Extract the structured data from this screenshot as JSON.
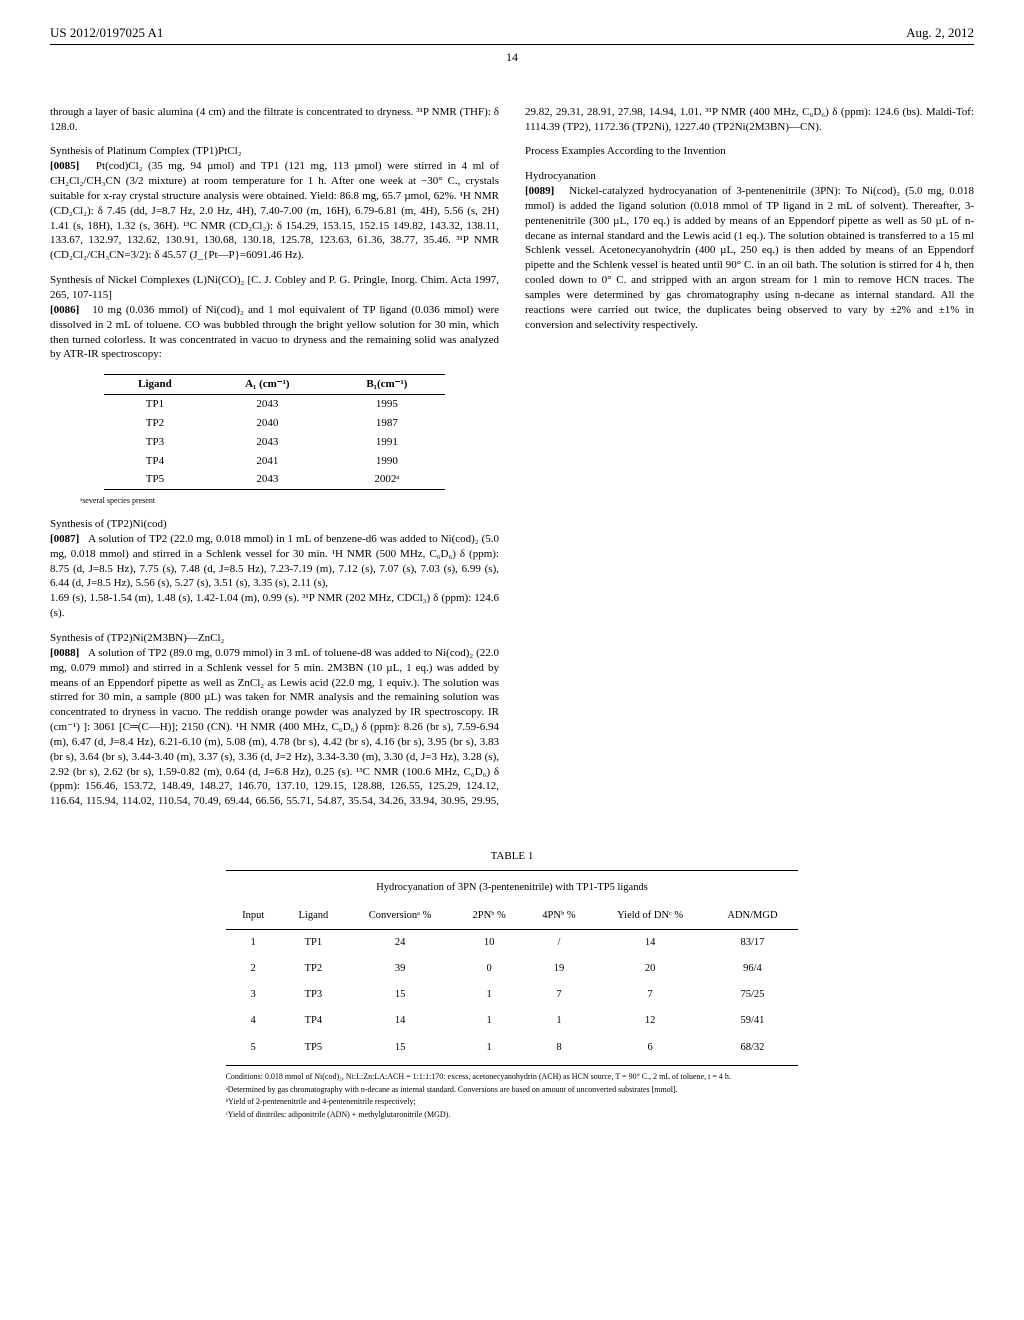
{
  "header": {
    "patent_number": "US 2012/0197025 A1",
    "date": "Aug. 2, 2012"
  },
  "page_number": "14",
  "col1": {
    "p0": "through a layer of basic alumina (4 cm) and the filtrate is concentrated to dryness. ³¹P NMR (THF): δ 128.0.",
    "h1": "Synthesis of Platinum Complex (TP1)PtCl₂",
    "p1_num": "[0085]",
    "p1": "Pt(cod)Cl₂ (35 mg, 94 µmol) and TP1 (121 mg, 113 µmol) were stirred in 4 ml of CH₂Cl₂/CH₃CN (3/2 mixture) at room temperature for 1 h. After one week at −30° C., crystals suitable for x-ray crystal structure analysis were obtained. Yield: 86.8 mg, 65.7 µmol, 62%. ¹H NMR (CD₂Cl₂): δ 7.45 (dd, J=8.7 Hz, 2.0 Hz, 4H), 7.40-7.00 (m, 16H), 6.79-6.81 (m, 4H), 5.56 (s, 2H) 1.41 (s, 18H), 1.32 (s, 36H). ¹³C NMR (CD₂Cl₂): δ 154.29, 153.15, 152.15 149.82, 143.32, 138.11, 133.67, 132.97, 132.62, 130.91, 130.68, 130.18, 125.78, 123.63, 61.36, 38.77, 35.46. ³¹P NMR (CD₂Cl₂/CH₃CN=3/2): δ 45.57 (J_{Pt—P}=6091.46 Hz).",
    "h2": "Synthesis of Nickel Complexes (L)Ni(CO)₂ [C. J. Cobley and P. G. Pringle, Inorg. Chim. Acta 1997, 265, 107-115]",
    "p2_num": "[0086]",
    "p2": "10 mg (0.036 mmol) of Ni(cod)₂ and 1 mol equivalent of TP ligand (0.036 mmol) were dissolved in 2 mL of toluene. CO was bubbled through the bright yellow solution for 30 min, which then turned colorless. It was concentrated in vacuo to dryness and the remaining solid was analyzed by ATR-IR spectroscopy:",
    "ligand_table": {
      "headers": [
        "Ligand",
        "A₁ (cm⁻¹)",
        "B₁(cm⁻¹)"
      ],
      "rows": [
        [
          "TP1",
          "2043",
          "1995"
        ],
        [
          "TP2",
          "2040",
          "1987"
        ],
        [
          "TP3",
          "2043",
          "1991"
        ],
        [
          "TP4",
          "2041",
          "1990"
        ],
        [
          "TP5",
          "2043",
          "2002ᵃ"
        ]
      ],
      "footnote": "ᵃseveral species present"
    },
    "h3": "Synthesis of (TP2)Ni(cod)",
    "p3_num": "[0087]",
    "p3": "A solution of TP2 (22.0 mg, 0.018 mmol) in 1 mL of benzene-d6 was added to Ni(cod)₂ (5.0 mg, 0.018 mmol) and stirred in a Schlenk vessel for 30 min. ¹H NMR (500 MHz, C₆D₆) δ (ppm): 8.75 (d, J=8.5 Hz), 7.75 (s), 7.48 (d, J=8.5 Hz), 7.23-7.19 (m), 7.12 (s), 7.07 (s), 7.03 (s), 6.99 (s), 6.44 (d, J=8.5 Hz), 5.56 (s), 5.27 (s), 3.51 (s), 3.35 (s), 2.11 (s),"
  },
  "col2": {
    "p0": "1.69 (s), 1.58-1.54 (m), 1.48 (s), 1.42-1.04 (m), 0.99 (s). ³¹P NMR (202 MHz, CDCl₃) δ (ppm): 124.6 (s).",
    "h1": "Synthesis of (TP2)Ni(2M3BN)—ZnCl₂",
    "p1_num": "[0088]",
    "p1": "A solution of TP2 (89.0 mg, 0.079 mmol) in 3 mL of toluene-d8 was added to Ni(cod)₂ (22.0 mg, 0.079 mmol) and stirred in a Schlenk vessel for 5 min. 2M3BN (10 µL, 1 eq.) was added by means of an Eppendorf pipette as well as ZnCl₂ as Lewis acid (22.0 mg, 1 equiv.). The solution was stirred for 30 min, a sample (800 µL) was taken for NMR analysis and the remaining solution was concentrated to dryness in vacuo. The reddish orange powder was analyzed by IR spectroscopy. IR (cm⁻¹) ]: 3061 [C═(C—H)]; 2150 (CN). ¹H NMR (400 MHz, C₆D₆) δ (ppm): 8.26 (br s), 7.59-6.94 (m), 6.47 (d, J=8.4 Hz), 6.21-6.10 (m), 5.08 (m), 4.78 (br s), 4.42 (br s), 4.16 (br s), 3.95 (br s), 3.83 (br s), 3.64 (br s), 3.44-3.40 (m), 3.37 (s), 3.36 (d, J=2 Hz), 3.34-3.30 (m), 3.30 (d, J=3 Hz), 3.28 (s), 2.92 (br s), 2.62 (br s), 1.59-0.82 (m), 0.64 (d, J=6.8 Hz), 0.25 (s). ¹³C NMR (100.6 MHz, C₆D₆) δ (ppm): 156.46, 153.72, 148.49, 148.27, 146.70, 137.10, 129.15, 128.88, 126.55, 125.29, 124.12, 116.64, 115.94, 114.02, 110.54, 70.49, 69.44, 66.56, 55.71, 54.87, 35.54, 34.26, 33.94, 30.95, 29.95, 29.82, 29.31, 28.91, 27.98, 14.94, 1.01. ³¹P NMR (400 MHz, C₆D₆) δ (ppm): 124.6 (bs). Maldi-Tof: 1114.39 (TP2), 1172.36 (TP2Ni), 1227.40 (TP2Ni(2M3BN)—CN).",
    "h2": "Process Examples According to the Invention",
    "h3": "Hydrocyanation",
    "p2_num": "[0089]",
    "p2": "Nickel-catalyzed hydrocyanation of 3-pentenenitrile (3PN): To Ni(cod)₂ (5.0 mg, 0.018 mmol) is added the ligand solution (0.018 mmol of TP ligand in 2 mL of solvent). Thereafter, 3-pentenenitrile (300 µL, 170 eq.) is added by means of an Eppendorf pipette as well as 50 µL of n-decane as internal standard and the Lewis acid (1 eq.). The solution obtained is transferred to a 15 ml Schlenk vessel. Acetonecyanohydrin (400 µL, 250 eq.) is then added by means of an Eppendorf pipette and the Schlenk vessel is heated until 90° C. in an oil bath. The solution is stirred for 4 h, then cooled down to 0° C. and stripped with an argon stream for 1 min to remove HCN traces. The samples were determined by gas chromatography using n-decane as internal standard. All the reactions were carried out twice, the duplicates being observed to vary by ±2% and ±1% in conversion and selectivity respectively."
  },
  "table1": {
    "caption": "TABLE 1",
    "title": "Hydrocyanation of 3PN (3-pentenenitrile) with TP1-TP5 ligands",
    "headers": [
      "Input",
      "Ligand",
      "Conversionᵃ %",
      "2PNᵇ %",
      "4PNᵇ %",
      "Yield of DNᶜ %",
      "ADN/MGD"
    ],
    "rows": [
      [
        "1",
        "TP1",
        "24",
        "10",
        "/",
        "14",
        "83/17"
      ],
      [
        "2",
        "TP2",
        "39",
        "0",
        "19",
        "20",
        "96/4"
      ],
      [
        "3",
        "TP3",
        "15",
        "1",
        "7",
        "7",
        "75/25"
      ],
      [
        "4",
        "TP4",
        "14",
        "1",
        "1",
        "12",
        "59/41"
      ],
      [
        "5",
        "TP5",
        "15",
        "1",
        "8",
        "6",
        "68/32"
      ]
    ],
    "footnotes": [
      "Conditions: 0.018 mmol of Ni(cod)₂, Ni:L:Zn:LA:ACH = 1:1:1:170: excess, acetonecyanohydrin (ACH) as HCN source, T = 90° C., 2 mL of toluene, t = 4 h.",
      "ᵃDetermined by gas chromatography with n-decane as internal standard. Conversions are based on amount of unconverted substrates [mmol].",
      "ᵇYield of 2-pentenenitrile and 4-pentenenitrile respectively;",
      "ᶜYield of dinitriles: adiponitrile (ADN) + methylglutaronitrile (MGD)."
    ]
  }
}
